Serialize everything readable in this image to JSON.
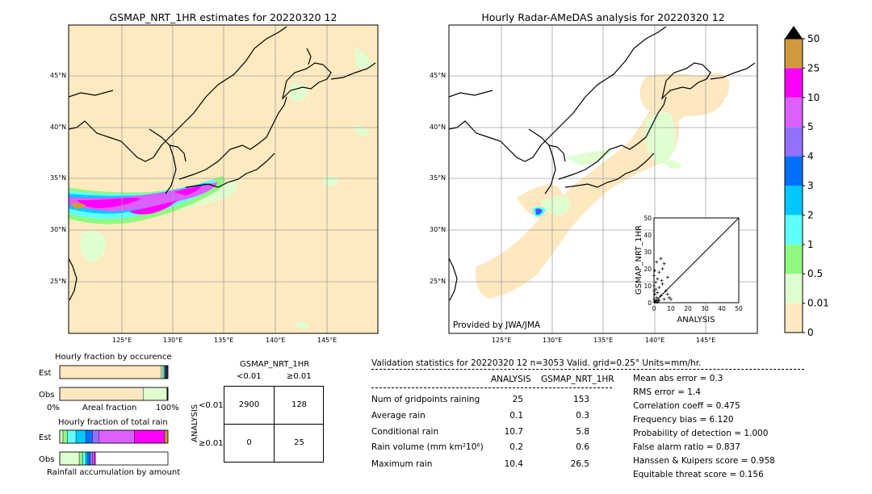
{
  "colors": {
    "ocean": "#fdeac0",
    "land": "#fdeac0",
    "grid": "#a0a0a0",
    "coast": "#000000"
  },
  "maps": {
    "left_title": "GSMAP_NRT_1HR estimates for 20220320 12",
    "right_title": "Hourly Radar-AMeDAS analysis for 20220320 12",
    "lat_labels": [
      "45°N",
      "40°N",
      "35°N",
      "30°N",
      "25°N"
    ],
    "lon_labels": [
      "125°E",
      "130°E",
      "135°E",
      "140°E",
      "145°E"
    ],
    "provided_by": "Provided by JWA/JMA"
  },
  "colorbar": {
    "levels": [
      "0",
      "0.01",
      "0.5",
      "1",
      "2",
      "3",
      "4",
      "5",
      "10",
      "25",
      "50"
    ],
    "colors": [
      "#fde8c0",
      "#e0ffd0",
      "#90fa80",
      "#60ffff",
      "#00c8ff",
      "#0070ff",
      "#9470ff",
      "#da60ff",
      "#ff00ff",
      "#d09a3c"
    ],
    "extend_color": "#000000"
  },
  "chart_data": [
    {
      "type": "scatter",
      "title": "",
      "xlabel": "ANALYSIS",
      "ylabel": "GSMAP_NRT_1HR",
      "xlim": [
        0,
        50
      ],
      "ylim": [
        0,
        50
      ],
      "ticks": [
        "0",
        "10",
        "20",
        "30",
        "40",
        "50"
      ],
      "points": [
        [
          0.2,
          2
        ],
        [
          0.5,
          5
        ],
        [
          1,
          8
        ],
        [
          1,
          12
        ],
        [
          1.5,
          3
        ],
        [
          2,
          6
        ],
        [
          2,
          14
        ],
        [
          2.5,
          1
        ],
        [
          3,
          9
        ],
        [
          3,
          18
        ],
        [
          4,
          4
        ],
        [
          4,
          26
        ],
        [
          5,
          11
        ],
        [
          5,
          20
        ],
        [
          6,
          2
        ],
        [
          6,
          23
        ],
        [
          7,
          7
        ],
        [
          8,
          5
        ],
        [
          8,
          15
        ],
        [
          9,
          3
        ],
        [
          10,
          2
        ],
        [
          0.3,
          0.5
        ],
        [
          0.8,
          1
        ],
        [
          1.2,
          0.5
        ],
        [
          2,
          0.3
        ],
        [
          3,
          1.5
        ],
        [
          0.1,
          10
        ],
        [
          0.1,
          16
        ],
        [
          0.5,
          19
        ],
        [
          1.5,
          24
        ],
        [
          0.2,
          7
        ],
        [
          4.5,
          13
        ]
      ]
    },
    {
      "type": "bar",
      "title": "Hourly fraction by occurence",
      "xlabel": "Areal fraction",
      "tick_left": "0%",
      "tick_right": "100%",
      "rows": [
        {
          "label": "Est",
          "segments": [
            {
              "color": "#fde8c0",
              "value": 0.935
            },
            {
              "color": "#e0ffd0",
              "value": 0.02
            },
            {
              "color": "#90fa80",
              "value": 0.01
            },
            {
              "color": "#60ffff",
              "value": 0.008
            },
            {
              "color": "#00c8ff",
              "value": 0.007
            },
            {
              "color": "#0070ff",
              "value": 0.005
            },
            {
              "color": "#9470ff",
              "value": 0.005
            },
            {
              "color": "#da60ff",
              "value": 0.006
            },
            {
              "color": "#ff00ff",
              "value": 0.004
            }
          ]
        },
        {
          "label": "Obs",
          "segments": [
            {
              "color": "#fde8c0",
              "value": 0.77
            },
            {
              "color": "#e0ffd0",
              "value": 0.22
            },
            {
              "color": "#90fa80",
              "value": 0.004
            },
            {
              "color": "#60ffff",
              "value": 0.003
            },
            {
              "color": "#00c8ff",
              "value": 0.002
            },
            {
              "color": "#9470ff",
              "value": 0.001
            }
          ]
        }
      ]
    },
    {
      "type": "bar",
      "title": "Hourly fraction of total rain",
      "xlabel": "Rainfall accumulation by amount",
      "rows": [
        {
          "label": "Est",
          "segments": [
            {
              "color": "#e0ffd0",
              "value": 0.03
            },
            {
              "color": "#90fa80",
              "value": 0.04
            },
            {
              "color": "#60ffff",
              "value": 0.08
            },
            {
              "color": "#00c8ff",
              "value": 0.09
            },
            {
              "color": "#0070ff",
              "value": 0.06
            },
            {
              "color": "#9470ff",
              "value": 0.06
            },
            {
              "color": "#da60ff",
              "value": 0.33
            },
            {
              "color": "#ff00ff",
              "value": 0.28
            },
            {
              "color": "#d09a3c",
              "value": 0.03
            }
          ]
        },
        {
          "label": "Obs",
          "segments": [
            {
              "color": "#e0ffd0",
              "value": 0.18
            },
            {
              "color": "#90fa80",
              "value": 0.03
            },
            {
              "color": "#60ffff",
              "value": 0.03
            },
            {
              "color": "#00c8ff",
              "value": 0.02
            },
            {
              "color": "#0070ff",
              "value": 0.02
            },
            {
              "color": "#9470ff",
              "value": 0.02
            },
            {
              "color": "#da60ff",
              "value": 0.02
            },
            {
              "color": "#ff00ff",
              "value": 0.01
            }
          ]
        }
      ]
    }
  ],
  "contingency": {
    "title": "GSMAP_NRT_1HR",
    "col_labels": [
      "<0.01",
      "≥0.01"
    ],
    "row_axis": "ANALYSIS",
    "row_labels": [
      "<0.01",
      "≥0.01"
    ],
    "cells": [
      "2900",
      "128",
      "0",
      "25"
    ]
  },
  "validation": {
    "header": "Validation statistics for 20220320 12  n=3053 Valid. grid=0.25° Units=mm/hr.",
    "col_analysis": "ANALYSIS",
    "col_gsmap": "GSMAP_NRT_1HR",
    "rows": [
      {
        "label": "Num of gridpoints raining",
        "analysis": "25",
        "gsmap": "153"
      },
      {
        "label": "Average rain",
        "analysis": "0.1",
        "gsmap": "0.3"
      },
      {
        "label": "Conditional rain",
        "analysis": "10.7",
        "gsmap": "5.8"
      },
      {
        "label": "Rain volume (mm km²10⁶)",
        "analysis": "0.2",
        "gsmap": "0.6"
      },
      {
        "label": "Maximum rain",
        "analysis": "10.4",
        "gsmap": "26.5"
      }
    ],
    "scores": [
      "Mean abs error =    0.3",
      "RMS error =    1.4",
      "Correlation coeff =  0.475",
      "Frequency bias =  6.120",
      "Probability of detection =  1.000",
      "False alarm ratio =  0.837",
      "Hanssen & Kuipers score =  0.958",
      "Equitable threat score =  0.156"
    ]
  }
}
